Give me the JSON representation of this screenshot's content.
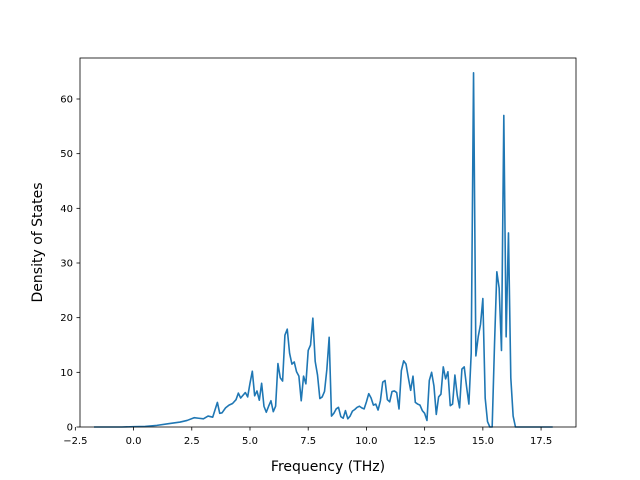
{
  "chart_data": {
    "type": "line",
    "title": "",
    "xlabel": "Frequency (THz)",
    "ylabel": "Density of States",
    "xlim": [
      -2.3,
      19.0
    ],
    "ylim": [
      0,
      67.5
    ],
    "grid": false,
    "legend": "none",
    "x_ticks": [
      -2.5,
      0.0,
      2.5,
      5.0,
      7.5,
      10.0,
      12.5,
      15.0,
      17.5
    ],
    "x_tick_labels": [
      "−2.5",
      "0.0",
      "2.5",
      "5.0",
      "7.5",
      "10.0",
      "12.5",
      "15.0",
      "17.5"
    ],
    "y_ticks": [
      0,
      10,
      20,
      30,
      40,
      50,
      60
    ],
    "y_tick_labels": [
      "0",
      "10",
      "20",
      "30",
      "40",
      "50",
      "60"
    ],
    "series": [
      {
        "color": "#1f77b4",
        "x": [
          -1.7,
          -1.0,
          -0.5,
          0.0,
          0.5,
          1.0,
          1.5,
          2.0,
          2.3,
          2.6,
          2.8,
          3.0,
          3.2,
          3.4,
          3.6,
          3.7,
          3.8,
          3.95,
          4.1,
          4.25,
          4.4,
          4.5,
          4.6,
          4.7,
          4.8,
          4.9,
          5.0,
          5.1,
          5.2,
          5.3,
          5.4,
          5.5,
          5.6,
          5.7,
          5.8,
          5.9,
          6.0,
          6.1,
          6.2,
          6.3,
          6.4,
          6.5,
          6.6,
          6.7,
          6.8,
          6.9,
          7.0,
          7.1,
          7.2,
          7.3,
          7.4,
          7.5,
          7.6,
          7.7,
          7.8,
          7.9,
          8.0,
          8.1,
          8.2,
          8.3,
          8.4,
          8.5,
          8.6,
          8.7,
          8.8,
          8.9,
          9.0,
          9.1,
          9.2,
          9.3,
          9.4,
          9.5,
          9.6,
          9.7,
          9.8,
          9.9,
          10.0,
          10.1,
          10.2,
          10.3,
          10.4,
          10.5,
          10.6,
          10.7,
          10.8,
          10.9,
          11.0,
          11.1,
          11.2,
          11.3,
          11.4,
          11.5,
          11.6,
          11.7,
          11.8,
          11.9,
          12.0,
          12.1,
          12.2,
          12.3,
          12.4,
          12.5,
          12.6,
          12.7,
          12.8,
          12.9,
          13.0,
          13.1,
          13.2,
          13.3,
          13.4,
          13.5,
          13.6,
          13.7,
          13.8,
          13.9,
          14.0,
          14.1,
          14.2,
          14.3,
          14.4,
          14.5,
          14.6,
          14.7,
          14.8,
          14.9,
          15.0,
          15.1,
          15.2,
          15.3,
          15.4,
          15.5,
          15.6,
          15.7,
          15.8,
          15.9,
          16.0,
          16.1,
          16.2,
          16.3,
          16.4,
          16.5,
          16.7,
          17.0,
          17.5,
          18.0
        ],
        "y": [
          0,
          0,
          0,
          0.05,
          0.1,
          0.3,
          0.6,
          0.9,
          1.2,
          1.7,
          1.6,
          1.5,
          2.0,
          1.8,
          4.5,
          2.5,
          2.6,
          3.5,
          4.0,
          4.3,
          5.0,
          6.2,
          5.3,
          5.8,
          6.3,
          5.5,
          8.0,
          10.2,
          5.7,
          6.6,
          4.9,
          8.0,
          3.8,
          2.7,
          3.8,
          4.8,
          2.8,
          3.8,
          11.6,
          9.0,
          8.4,
          16.8,
          17.9,
          13.5,
          11.5,
          11.9,
          10.1,
          9.3,
          4.8,
          9.3,
          7.9,
          14.0,
          15.0,
          19.9,
          12.0,
          9.5,
          5.2,
          5.5,
          6.5,
          10.5,
          16.4,
          2.0,
          2.5,
          3.3,
          3.6,
          1.9,
          1.6,
          3.0,
          1.5,
          2.0,
          2.9,
          3.2,
          3.6,
          3.8,
          3.5,
          3.3,
          4.6,
          6.1,
          5.3,
          4.0,
          4.2,
          3.1,
          4.8,
          8.2,
          8.5,
          5.0,
          4.6,
          6.5,
          6.6,
          6.3,
          3.3,
          10.3,
          12.1,
          11.5,
          9.0,
          6.7,
          9.3,
          4.5,
          4.2,
          4.0,
          3.0,
          2.5,
          1.2,
          8.5,
          10.0,
          7.5,
          2.3,
          5.5,
          6.0,
          11.0,
          8.8,
          10.1,
          3.9,
          4.2,
          9.5,
          5.8,
          3.5,
          10.6,
          11.0,
          7.4,
          4.2,
          13.5,
          64.8,
          13.0,
          16.5,
          18.8,
          23.5,
          5.3,
          1.0,
          0,
          0,
          15.0,
          28.4,
          25.4,
          14.0,
          57.0,
          16.5,
          35.5,
          9.0,
          2.0,
          0,
          0,
          0,
          0,
          0,
          0
        ]
      }
    ]
  }
}
